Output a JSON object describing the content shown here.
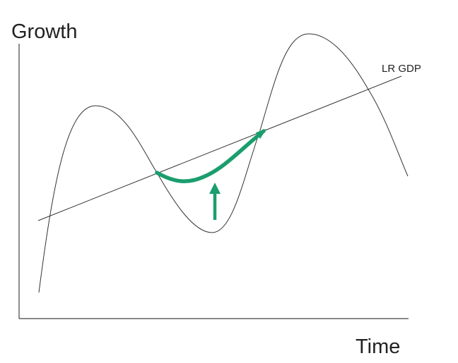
{
  "diagram": {
    "y_axis_label": "Growth",
    "x_axis_label": "Time",
    "trend_line_label": "LR GDP",
    "colors": {
      "axes": "#444444",
      "business_cycle_curve": "#333333",
      "trend_line": "#333333",
      "recovery_highlight": "#1a9e6e",
      "arrow": "#1a9e6e"
    }
  }
}
